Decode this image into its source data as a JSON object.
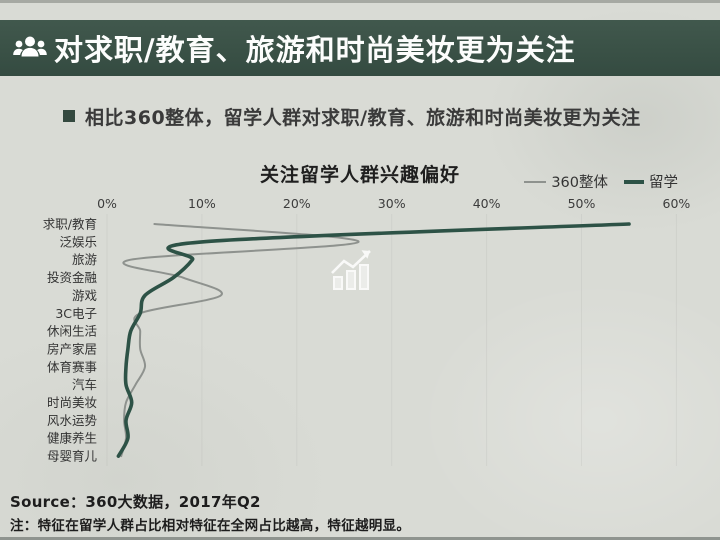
{
  "header": {
    "title": "对求职/教育、旅游和时尚美妆更为关注",
    "icon": "people-group-icon"
  },
  "key_point": {
    "text": "相比360整体，留学人群对求职/教育、旅游和时尚美妆更为关注"
  },
  "footer": {
    "source": "Source：360大数据，2017年Q2",
    "note": "注：特征在留学人群占比相对特征在全网占比越高，特征越明显。"
  },
  "colors": {
    "header_bg": "#3a5146",
    "page_bg": "#d9dbd5",
    "overall_line": "#8e928e",
    "liuxue_line": "#2d5246",
    "text_dark": "#1f1f1f"
  },
  "chart_data": {
    "type": "line",
    "orientation": "categories-on-y-values-on-x",
    "title": "关注留学人群兴趣偏好",
    "x_axis": {
      "position": "top",
      "min": 0,
      "max": 60,
      "unit": "%",
      "ticks": [
        "0%",
        "10%",
        "20%",
        "30%",
        "40%",
        "50%",
        "60%"
      ],
      "tick_values": [
        0,
        10,
        20,
        30,
        40,
        50,
        60
      ]
    },
    "categories": [
      "求职/教育",
      "泛娱乐",
      "旅游",
      "投资金融",
      "游戏",
      "3C电子",
      "休闲生活",
      "房产家居",
      "体育赛事",
      "汽车",
      "时尚美妆",
      "风水运势",
      "健康养生",
      "母婴育儿"
    ],
    "series": [
      {
        "name": "360整体",
        "color": "#8e928e",
        "stroke_width": 2,
        "values": [
          5,
          26.5,
          2.5,
          8,
          12,
          3.5,
          3.5,
          3.5,
          4,
          3,
          2,
          1.8,
          2,
          1.5
        ]
      },
      {
        "name": "留学",
        "color": "#2d5246",
        "stroke_width": 3.6,
        "values": [
          55,
          10,
          9,
          7,
          4,
          3.5,
          2.5,
          2.2,
          2,
          2,
          2.6,
          2,
          2.2,
          1.2
        ]
      }
    ],
    "legend": {
      "position": "top-right",
      "entries": [
        "360整体",
        "留学"
      ]
    },
    "watermark": "bar-chart-growth-icon",
    "smoothing": true,
    "grid": "faint-vertical-ticks"
  }
}
